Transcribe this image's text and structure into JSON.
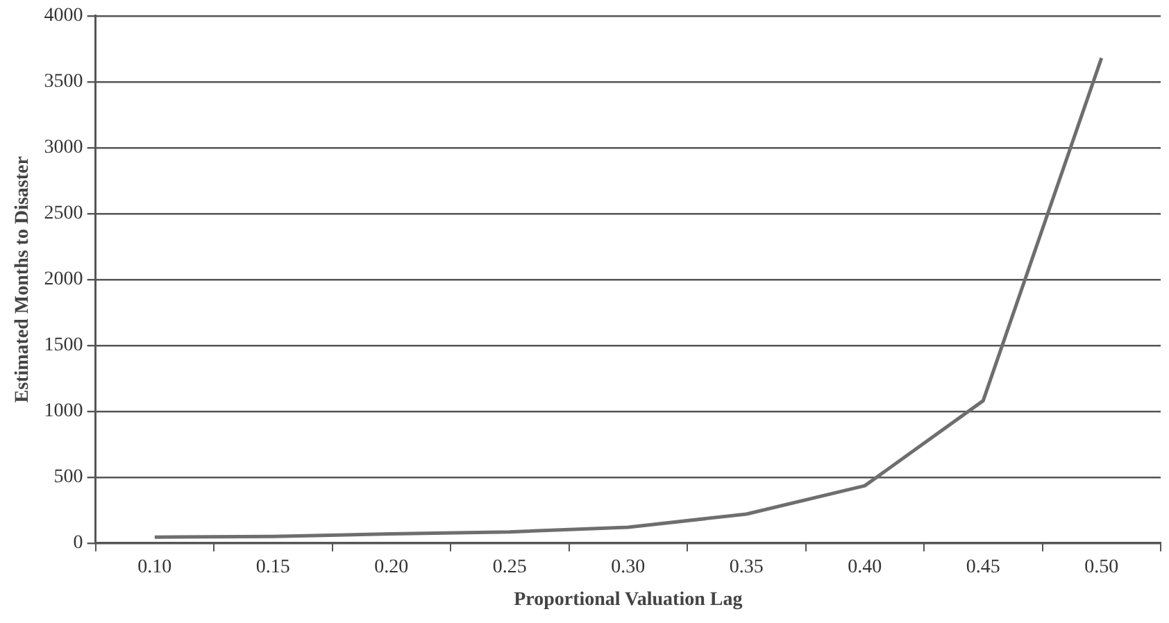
{
  "chart_data": {
    "type": "line",
    "xlabel": "Proportional Valuation Lag",
    "ylabel": "Estimated Months to Disaster",
    "categories": [
      "0.10",
      "0.15",
      "0.20",
      "0.25",
      "0.30",
      "0.35",
      "0.40",
      "0.45",
      "0.50"
    ],
    "series": [
      {
        "color": "#6e6e6e",
        "values": [
          45,
          50,
          70,
          85,
          120,
          220,
          435,
          1080,
          3680
        ]
      }
    ],
    "ylim": [
      0,
      4000
    ],
    "yticks": [
      0,
      500,
      1000,
      1500,
      2000,
      2500,
      3000,
      3500,
      4000
    ],
    "grid": "y",
    "legend": false,
    "marker": "none",
    "line_style": "solid"
  }
}
